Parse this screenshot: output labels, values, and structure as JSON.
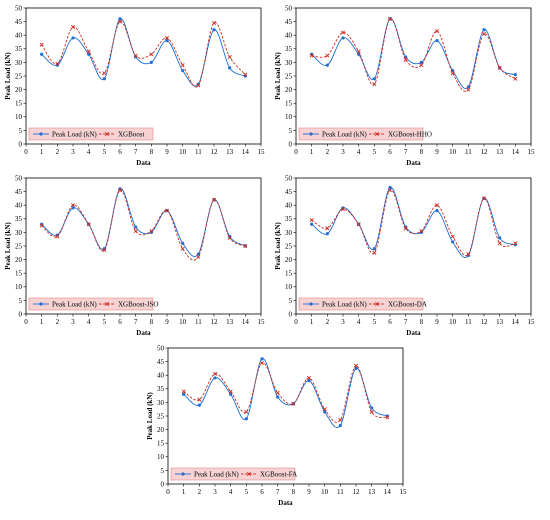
{
  "colors": {
    "actual": "#1f6fd6",
    "predicted": "#cc2a1e",
    "legend_bg": "#f7d3d3",
    "legend_border": "#e08a8a"
  },
  "chart_data": [
    {
      "type": "line",
      "xlabel": "Data",
      "ylabel": "Peak Load (kN)",
      "xlim": [
        0,
        15
      ],
      "ylim": [
        0,
        50
      ],
      "x_ticks": [
        0,
        1,
        2,
        3,
        4,
        5,
        6,
        7,
        8,
        9,
        10,
        11,
        12,
        13,
        14,
        15
      ],
      "y_ticks": [
        0,
        5,
        10,
        15,
        20,
        25,
        30,
        35,
        40,
        45,
        50
      ],
      "grid": false,
      "legend": "bottom-left",
      "x": [
        1,
        2,
        3,
        4,
        5,
        6,
        7,
        8,
        9,
        10,
        11,
        12,
        13,
        14
      ],
      "series": [
        {
          "name": "Peak Load (kN)",
          "values": [
            33,
            29,
            39,
            33,
            24,
            46,
            32,
            30,
            38,
            27,
            22,
            42,
            28,
            25
          ]
        },
        {
          "name": "XGBoost",
          "values": [
            36.5,
            29.5,
            43,
            34,
            26,
            45,
            32.5,
            33,
            39,
            29,
            21.5,
            44.5,
            32,
            25.5
          ]
        }
      ]
    },
    {
      "type": "line",
      "xlabel": "Data",
      "ylabel": "Peak Load (kN)",
      "xlim": [
        0,
        15
      ],
      "ylim": [
        0,
        50
      ],
      "x_ticks": [
        0,
        1,
        2,
        3,
        4,
        5,
        6,
        7,
        8,
        9,
        10,
        11,
        12,
        13,
        14,
        15
      ],
      "y_ticks": [
        0,
        5,
        10,
        15,
        20,
        25,
        30,
        35,
        40,
        45,
        50
      ],
      "grid": false,
      "legend": "bottom-left",
      "x": [
        1,
        2,
        3,
        4,
        5,
        6,
        7,
        8,
        9,
        10,
        11,
        12,
        13,
        14
      ],
      "series": [
        {
          "name": "Peak Load (kN)",
          "values": [
            33,
            29,
            39,
            33,
            24,
            46,
            32,
            30,
            38,
            27,
            21,
            42,
            28,
            25.5
          ]
        },
        {
          "name": "XGBoost-HHO",
          "values": [
            32.5,
            32.5,
            41,
            34,
            22,
            46,
            31,
            29,
            41.5,
            26,
            20,
            40.5,
            28,
            24
          ]
        }
      ]
    },
    {
      "type": "line",
      "xlabel": "Data",
      "ylabel": "Peak Load (kN)",
      "xlim": [
        0,
        15
      ],
      "ylim": [
        0,
        50
      ],
      "x_ticks": [
        0,
        1,
        2,
        3,
        4,
        5,
        6,
        7,
        8,
        9,
        10,
        11,
        12,
        13,
        14,
        15
      ],
      "y_ticks": [
        0,
        5,
        10,
        15,
        20,
        25,
        30,
        35,
        40,
        45,
        50
      ],
      "grid": false,
      "legend": "bottom-left",
      "x": [
        1,
        2,
        3,
        4,
        5,
        6,
        7,
        8,
        9,
        10,
        11,
        12,
        13,
        14
      ],
      "series": [
        {
          "name": "Peak Load (kN)",
          "values": [
            33,
            29,
            39,
            33,
            24,
            46,
            32,
            30,
            38,
            26,
            22,
            42,
            28.5,
            25
          ]
        },
        {
          "name": "XGBoost-JSO",
          "values": [
            32.5,
            28.5,
            40,
            33,
            23.5,
            45.5,
            30.5,
            30.5,
            38,
            24,
            21,
            42,
            28,
            25
          ]
        }
      ]
    },
    {
      "type": "line",
      "xlabel": "Data",
      "ylabel": "Peak Load (kN)",
      "xlim": [
        0,
        15
      ],
      "ylim": [
        0,
        50
      ],
      "x_ticks": [
        0,
        1,
        2,
        3,
        4,
        5,
        6,
        7,
        8,
        9,
        10,
        11,
        12,
        13,
        14,
        15
      ],
      "y_ticks": [
        0,
        5,
        10,
        15,
        20,
        25,
        30,
        35,
        40,
        45,
        50
      ],
      "grid": false,
      "legend": "bottom-left",
      "x": [
        1,
        2,
        3,
        4,
        5,
        6,
        7,
        8,
        9,
        10,
        11,
        12,
        13,
        14
      ],
      "series": [
        {
          "name": "Peak Load (kN)",
          "values": [
            33,
            29.5,
            39,
            33,
            24,
            46.5,
            32,
            30,
            38,
            26.5,
            21.5,
            42.5,
            28,
            25.5
          ]
        },
        {
          "name": "XGBoost-DA",
          "values": [
            34.5,
            31.5,
            38.5,
            33,
            22.5,
            45.5,
            31.5,
            30.5,
            40,
            28.5,
            22,
            42.5,
            26,
            26
          ]
        }
      ]
    },
    {
      "type": "line",
      "xlabel": "Data",
      "ylabel": "Peak Load (kN)",
      "xlim": [
        0,
        15
      ],
      "ylim": [
        0,
        50
      ],
      "x_ticks": [
        0,
        1,
        2,
        3,
        4,
        5,
        6,
        7,
        8,
        9,
        10,
        11,
        12,
        13,
        14,
        15
      ],
      "y_ticks": [
        0,
        5,
        10,
        15,
        20,
        25,
        30,
        35,
        40,
        45,
        50
      ],
      "grid": false,
      "legend": "bottom-left",
      "x": [
        1,
        2,
        3,
        4,
        5,
        6,
        7,
        8,
        9,
        10,
        11,
        12,
        13,
        14
      ],
      "series": [
        {
          "name": "Peak Load (kN)",
          "values": [
            33,
            29,
            39,
            33,
            24,
            46,
            32,
            29.5,
            38,
            26.5,
            21.5,
            42.5,
            28,
            25
          ]
        },
        {
          "name": "XGBoost-FA",
          "values": [
            34,
            31,
            40.5,
            34,
            26.5,
            44.5,
            33.5,
            29.5,
            39,
            27.5,
            23.5,
            43.5,
            26.5,
            24.5
          ]
        }
      ]
    }
  ]
}
